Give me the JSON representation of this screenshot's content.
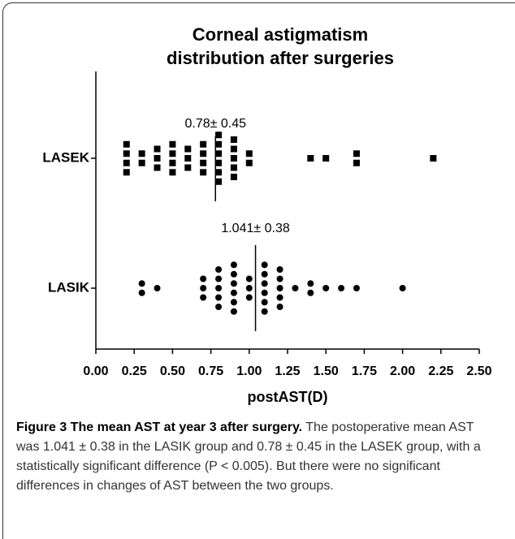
{
  "chart_data": {
    "type": "dot",
    "title": [
      "Corneal astigmatism",
      "distribution after surgeries"
    ],
    "xlabel": "postAST(D)",
    "color": "#000000",
    "xlim": [
      0,
      2.5
    ],
    "xticks": [
      {
        "value": 0,
        "label": "0.00"
      },
      {
        "value": 0.25,
        "label": "0.25"
      },
      {
        "value": 0.5,
        "label": "0.50"
      },
      {
        "value": 0.75,
        "label": "0.75"
      },
      {
        "value": 1,
        "label": "1.00"
      },
      {
        "value": 1.25,
        "label": "1.25"
      },
      {
        "value": 1.5,
        "label": "1.50"
      },
      {
        "value": 1.75,
        "label": "1.75"
      },
      {
        "value": 2,
        "label": "2.00"
      },
      {
        "value": 2.25,
        "label": "2.25"
      },
      {
        "value": 2.5,
        "label": "2.50"
      }
    ],
    "groups": [
      {
        "name": "LASEK",
        "marker": "square",
        "mean": 0.78,
        "annotation": "0.78± 0.45",
        "values": [
          0.2,
          0.2,
          0.2,
          0.2,
          0.3,
          0.3,
          0.4,
          0.4,
          0.4,
          0.5,
          0.5,
          0.5,
          0.5,
          0.6,
          0.6,
          0.6,
          0.7,
          0.7,
          0.7,
          0.7,
          0.8,
          0.8,
          0.8,
          0.8,
          0.8,
          0.8,
          0.9,
          0.9,
          0.9,
          0.9,
          0.9,
          1.0,
          1.0,
          1.4,
          1.5,
          1.7,
          1.7,
          2.2
        ]
      },
      {
        "name": "LASIK",
        "marker": "circle",
        "mean": 1.041,
        "annotation": "1.041± 0.38",
        "values": [
          0.3,
          0.3,
          0.4,
          0.7,
          0.7,
          0.7,
          0.8,
          0.8,
          0.8,
          0.8,
          0.8,
          0.9,
          0.9,
          0.9,
          0.9,
          0.9,
          0.9,
          1.0,
          1.0,
          1.0,
          1.1,
          1.1,
          1.1,
          1.1,
          1.1,
          1.1,
          1.2,
          1.2,
          1.2,
          1.2,
          1.2,
          1.3,
          1.4,
          1.4,
          1.5,
          1.6,
          1.7,
          2.0
        ]
      }
    ]
  },
  "caption": {
    "title": "Figure 3 The mean AST at year 3 after surgery.",
    "text": " The postoperative mean AST was 1.041 ± 0.38 in the LASIK group and 0.78 ± 0.45 in the LASEK group, with a statistically significant difference (P < 0.005). But there were no significant differences in changes of AST between the two groups."
  }
}
